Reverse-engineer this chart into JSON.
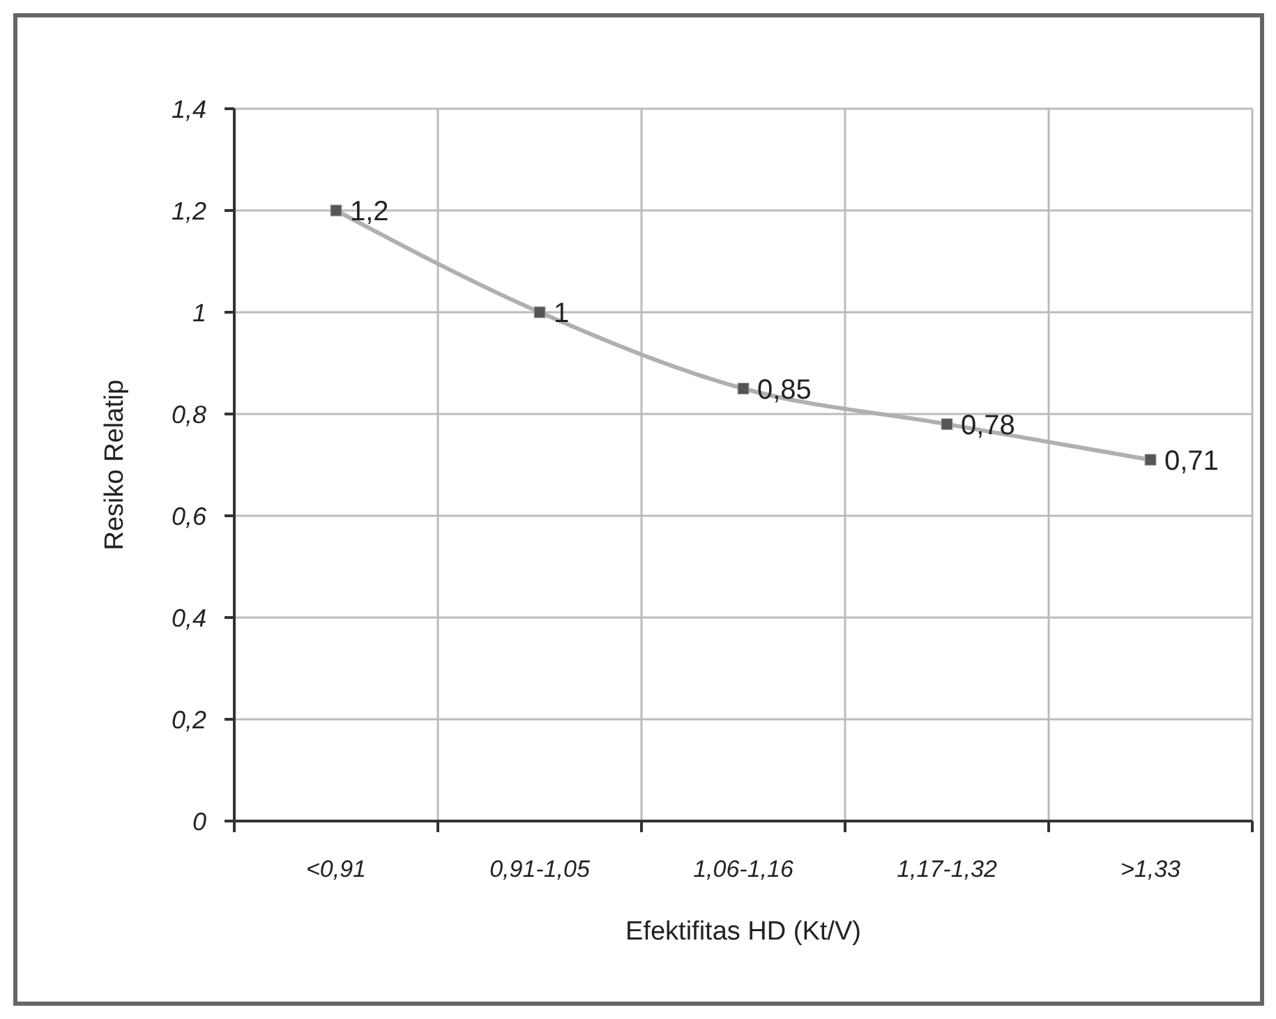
{
  "chart_data": {
    "type": "line",
    "xlabel": "Efektifitas HD (Kt/V)",
    "ylabel": "Resiko Relatip",
    "categories": [
      "<0,91",
      "0,91-1,05",
      "1,06-1,16",
      "1,17-1,32",
      ">1,33"
    ],
    "series": [
      {
        "color": "#b0b0b0",
        "values": [
          1.2,
          1,
          0.85,
          0.78,
          0.71
        ]
      }
    ],
    "value_labels": [
      "1,2",
      "1",
      "0,85",
      "0,78",
      "0,71"
    ],
    "ylim": [
      0,
      1.4
    ],
    "yticks": [
      {
        "value": 0,
        "label": "0"
      },
      {
        "value": 0.2,
        "label": "0,2"
      },
      {
        "value": 0.4,
        "label": "0,4"
      },
      {
        "value": 0.6,
        "label": "0,6"
      },
      {
        "value": 0.8,
        "label": "0,8"
      },
      {
        "value": 1,
        "label": "1"
      },
      {
        "value": 1.2,
        "label": "1,2"
      },
      {
        "value": 1.4,
        "label": "1,4"
      }
    ],
    "grid": true,
    "marker": "square",
    "line_style": "solid"
  }
}
